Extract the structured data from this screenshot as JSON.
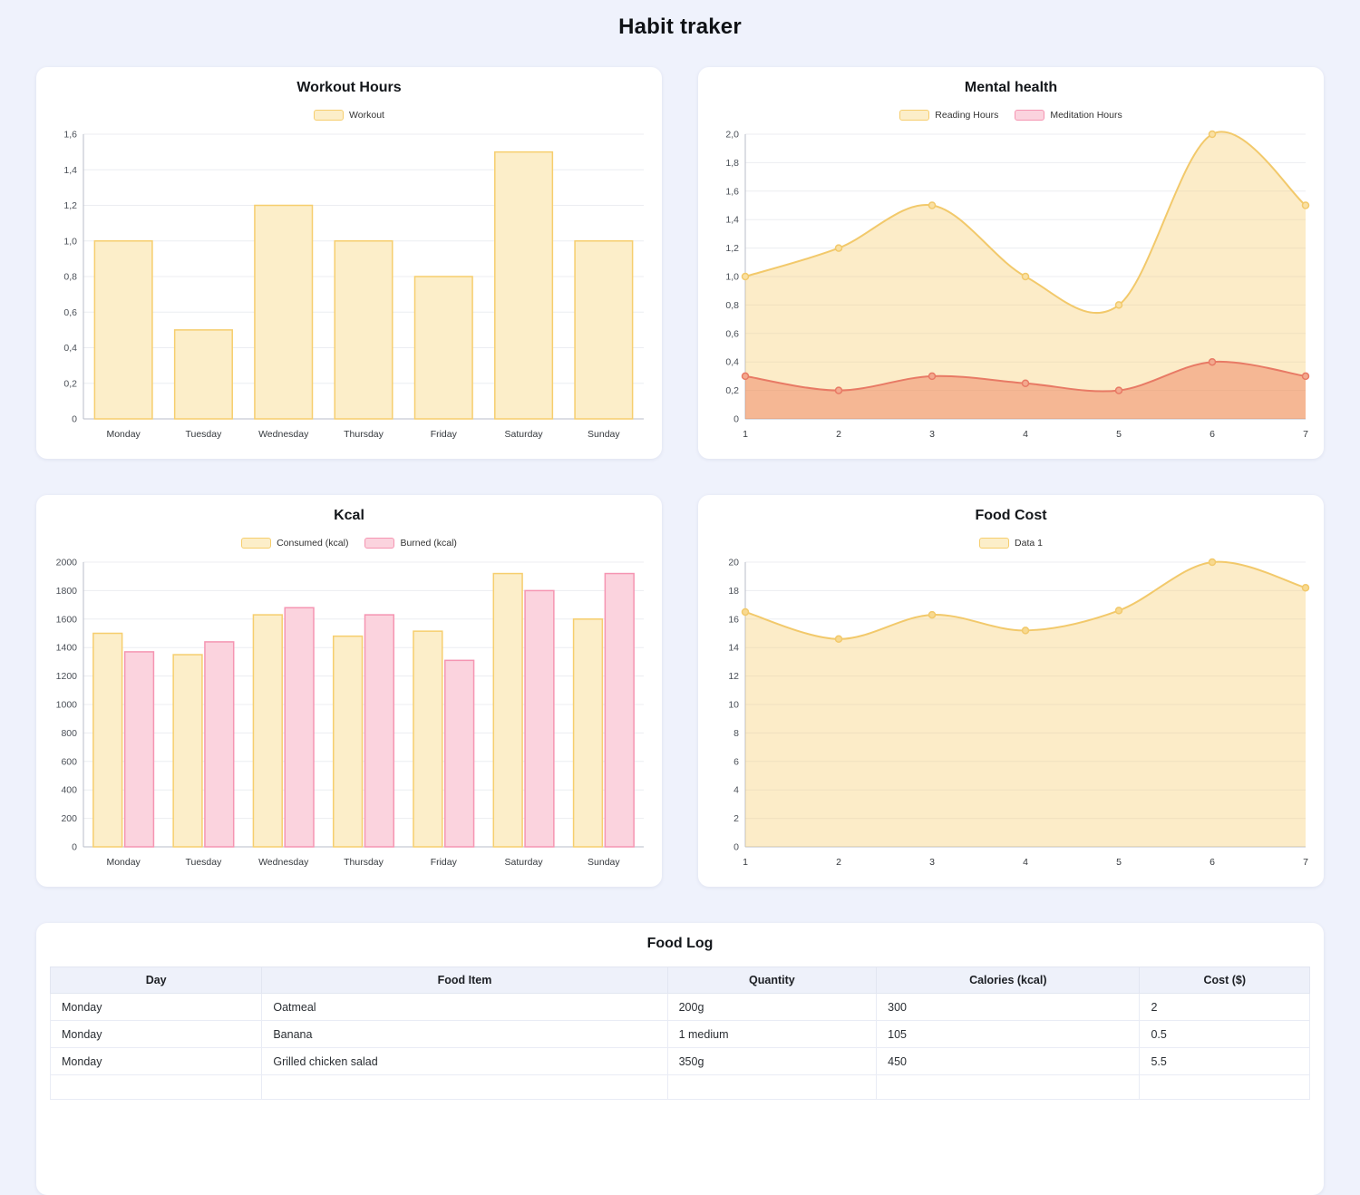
{
  "page": {
    "title": "Habit traker"
  },
  "chart_data": [
    {
      "type": "bar",
      "title": "Workout Hours",
      "categories": [
        "Monday",
        "Tuesday",
        "Wednesday",
        "Thursday",
        "Friday",
        "Saturday",
        "Sunday"
      ],
      "series": [
        {
          "name": "Workout",
          "values": [
            1.0,
            0.5,
            1.2,
            1.0,
            0.8,
            1.5,
            1.0
          ],
          "fill": "#FCEEC9",
          "border": "#F6CE6E",
          "chip_fill": "#FCEEC9",
          "chip_border": "#F6CE6E"
        }
      ],
      "ylim": [
        0,
        1.6
      ],
      "yticks": [
        "0",
        "0,2",
        "0,4",
        "0,6",
        "0,8",
        "1,0",
        "1,2",
        "1,4",
        "1,6"
      ],
      "grid": "horizontal",
      "legend_position": "top",
      "xlabel": "",
      "ylabel": ""
    },
    {
      "type": "area",
      "title": "Mental health",
      "x": [
        "1",
        "2",
        "3",
        "4",
        "5",
        "6",
        "7"
      ],
      "series": [
        {
          "name": "Reading Hours",
          "values": [
            1.0,
            1.2,
            1.5,
            1.0,
            0.8,
            2.0,
            1.5
          ],
          "fill": "rgba(246,206,110,0.38)",
          "line": "#F2C96B",
          "point_fill": "#FAE0A2",
          "chip_fill": "#FCEEC9",
          "chip_border": "#F6CE6E"
        },
        {
          "name": "Meditation Hours",
          "values": [
            0.3,
            0.2,
            0.3,
            0.25,
            0.2,
            0.4,
            0.3
          ],
          "fill": "rgba(235,105,70,0.40)",
          "line": "#E87A65",
          "point_fill": "#F3A98E",
          "chip_fill": "#FBD3DE",
          "chip_border": "#F595B2"
        }
      ],
      "ylim": [
        0,
        2.0
      ],
      "yticks": [
        "0",
        "0,2",
        "0,4",
        "0,6",
        "0,8",
        "1,0",
        "1,2",
        "1,4",
        "1,6",
        "1,8",
        "2,0"
      ],
      "grid": "horizontal",
      "legend_position": "top",
      "xlabel": "",
      "ylabel": ""
    },
    {
      "type": "bar",
      "title": "Kcal",
      "categories": [
        "Monday",
        "Tuesday",
        "Wednesday",
        "Thursday",
        "Friday",
        "Saturday",
        "Sunday"
      ],
      "series": [
        {
          "name": "Consumed (kcal)",
          "values": [
            1500,
            1350,
            1630,
            1480,
            1515,
            1920,
            1600
          ],
          "fill": "#FCEEC9",
          "border": "#F6CE6E",
          "chip_fill": "#FCEEC9",
          "chip_border": "#F6CE6E"
        },
        {
          "name": "Burned (kcal)",
          "values": [
            1370,
            1440,
            1680,
            1630,
            1310,
            1800,
            1920
          ],
          "fill": "#FBD3DE",
          "border": "#F595B2",
          "chip_fill": "#FBD3DE",
          "chip_border": "#F595B2"
        }
      ],
      "ylim": [
        0,
        2000
      ],
      "yticks": [
        "0",
        "200",
        "400",
        "600",
        "800",
        "1000",
        "1200",
        "1400",
        "1600",
        "1800",
        "2000"
      ],
      "grid": "horizontal",
      "legend_position": "top",
      "xlabel": "",
      "ylabel": ""
    },
    {
      "type": "area",
      "title": "Food Cost",
      "x": [
        "1",
        "2",
        "3",
        "4",
        "5",
        "6",
        "7"
      ],
      "series": [
        {
          "name": "Data 1",
          "values": [
            16.5,
            14.6,
            16.3,
            15.2,
            16.6,
            20.0,
            18.2
          ],
          "fill": "rgba(246,206,110,0.38)",
          "line": "#F2C96B",
          "point_fill": "#F8D98F",
          "chip_fill": "#FCEEC9",
          "chip_border": "#F6CE6E"
        }
      ],
      "ylim": [
        0,
        20
      ],
      "yticks": [
        "0",
        "2",
        "4",
        "6",
        "8",
        "10",
        "12",
        "14",
        "16",
        "18",
        "20"
      ],
      "grid": "horizontal",
      "legend_position": "top",
      "xlabel": "",
      "ylabel": ""
    }
  ],
  "food_log": {
    "title": "Food Log",
    "columns": [
      "Day",
      "Food Item",
      "Quantity",
      "Calories (kcal)",
      "Cost ($)"
    ],
    "rows": [
      [
        "Monday",
        "Oatmeal",
        "200g",
        "300",
        "2"
      ],
      [
        "Monday",
        "Banana",
        "1 medium",
        "105",
        "0.5"
      ],
      [
        "Monday",
        "Grilled chicken salad",
        "350g",
        "450",
        "5.5"
      ]
    ]
  }
}
